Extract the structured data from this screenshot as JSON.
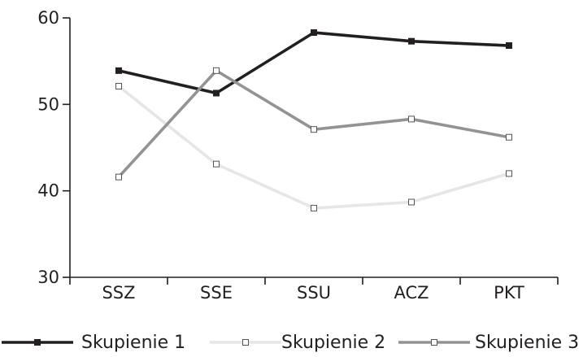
{
  "chart_data": {
    "type": "line",
    "categories": [
      "SSZ",
      "SSE",
      "SSU",
      "ACZ",
      "PKT"
    ],
    "ylim": [
      30,
      60
    ],
    "yticks": [
      30,
      40,
      50,
      60
    ],
    "grid": false,
    "legend_position": "bottom",
    "series": [
      {
        "name": "Skupienie 1",
        "values": [
          53.9,
          51.3,
          58.3,
          57.3,
          56.8
        ],
        "color": "#231f20"
      },
      {
        "name": "Skupienie 2",
        "values": [
          52.1,
          43.1,
          38.0,
          38.7,
          42.0
        ],
        "color": "#e6e6e6"
      },
      {
        "name": "Skupienie 3",
        "values": [
          41.6,
          53.9,
          47.1,
          48.3,
          46.2
        ],
        "color": "#939393"
      }
    ]
  }
}
